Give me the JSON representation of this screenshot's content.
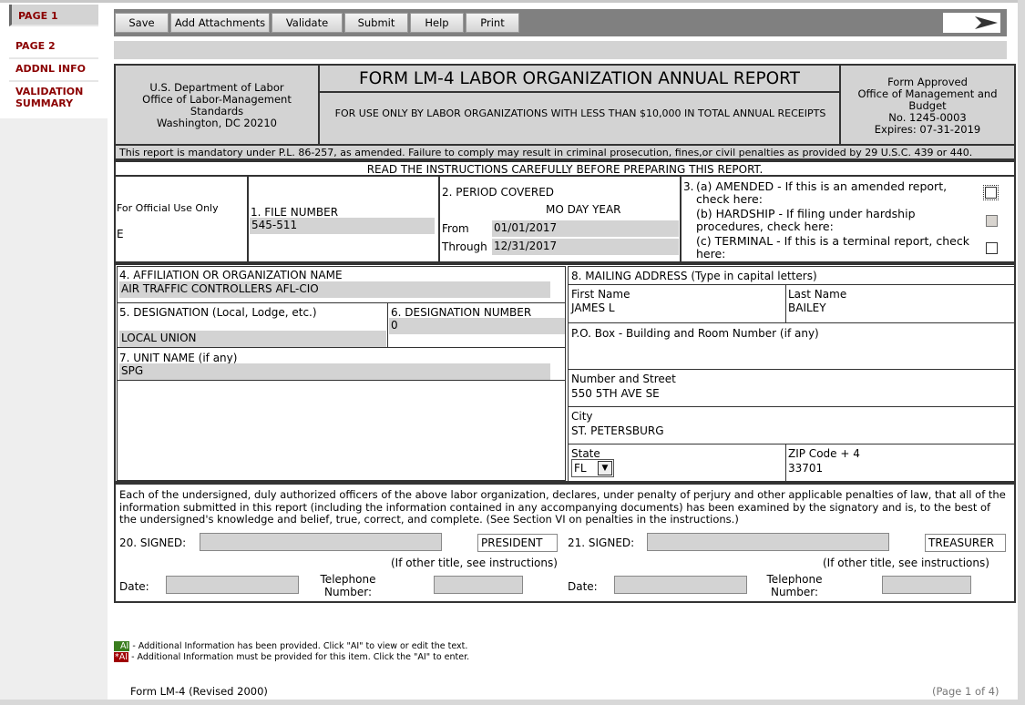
{
  "sidebar": {
    "items": [
      {
        "label": "PAGE 1"
      },
      {
        "label": "PAGE 2"
      },
      {
        "label": "ADDNL INFO"
      },
      {
        "label": "VALIDATION SUMMARY"
      }
    ]
  },
  "toolbar": {
    "buttons": [
      "Save",
      "Add Attachments",
      "Validate",
      "Submit",
      "Help",
      "Print"
    ],
    "next_icon": "arrow-right-icon"
  },
  "header": {
    "agency": [
      "U.S. Department of Labor",
      "Office of Labor-Management Standards",
      "Washington, DC 20210"
    ],
    "title": "FORM LM-4 LABOR ORGANIZATION ANNUAL REPORT",
    "subtitle": "FOR USE ONLY BY LABOR ORGANIZATIONS WITH LESS THAN $10,000 IN TOTAL ANNUAL RECEIPTS",
    "omb": [
      "Form Approved",
      "Office of Management and Budget",
      "No. 1245-0003",
      "Expires: 07-31-2019"
    ],
    "notice": "This report is mandatory under P.L. 86-257, as amended. Failure to comply may result in criminal prosecution, fines,or civil penalties as provided by 29 U.S.C. 439 or 440.",
    "instructions": "READ THE INSTRUCTIONS CAREFULLY BEFORE PREPARING THIS REPORT."
  },
  "official": {
    "label": "For Official Use Only",
    "value": "E"
  },
  "file_number": {
    "label": "1. FILE NUMBER",
    "value": "545-511"
  },
  "period": {
    "label": "2. PERIOD COVERED",
    "cols": "MO DAY YEAR",
    "from_label": "From",
    "from": "01/01/2017",
    "through_label": "Through",
    "through": "12/31/2017"
  },
  "item3": {
    "num": "3.",
    "amended": "(a) AMENDED - If this is an amended report, check here:",
    "hardship": "(b) HARDSHIP - If filing under hardship procedures, check here:",
    "terminal": "(c) TERMINAL - If this is a terminal report, check here:",
    "checked": {
      "amended": false,
      "hardship": false,
      "terminal": false
    }
  },
  "org": {
    "label": "4. AFFILIATION OR ORGANIZATION NAME",
    "value": "AIR TRAFFIC CONTROLLERS AFL-CIO"
  },
  "designation": {
    "label": "5. DESIGNATION (Local, Lodge, etc.)",
    "value": "LOCAL UNION"
  },
  "designation_number": {
    "label": "6. DESIGNATION NUMBER",
    "value": "0"
  },
  "unit": {
    "label": "7. UNIT NAME (if any)",
    "value": "SPG"
  },
  "mailing": {
    "label": "8. MAILING ADDRESS (Type in capital letters)",
    "first_label": "First Name",
    "first": "JAMES L",
    "last_label": "Last Name",
    "last": "BAILEY",
    "pobox_label": "P.O. Box - Building and Room Number (if any)",
    "pobox": "",
    "street_label": "Number and Street",
    "street": "550 5TH AVE SE",
    "city_label": "City",
    "city": "ST. PETERSBURG",
    "state_label": "State",
    "state": "FL",
    "zip_label": "ZIP Code + 4",
    "zip": "33701"
  },
  "signature": {
    "declaration": "Each of the undersigned, duly authorized officers of the above labor organization, declares, under penalty of perjury and other applicable penalties of law, that all of the information submitted in this report (including the information contained in any accompanying documents) has been examined by the signatory and is, to the best of the undersigned's knowledge and belief, true, correct, and complete. (See Section VI on penalties in the instructions.)",
    "s20": "20. SIGNED:",
    "title20": "PRESIDENT",
    "s21": "21. SIGNED:",
    "title21": "TREASURER",
    "other_title": "(If other title, see instructions)",
    "date": "Date:",
    "phone": "Telephone Number:"
  },
  "legend": {
    "ai": "AI",
    "ai_text": " - Additional Information has been provided. Click \"AI\" to view or edit the text.",
    "req": "*AI",
    "req_text": " - Additional Information must be provided for this item. Click the \"AI\" to enter.",
    "ai_color": "#3a7d1e",
    "req_color": "#a00000"
  },
  "footer": {
    "form": "Form LM-4 (Revised 2000)",
    "page": "(Page 1 of 4)"
  }
}
